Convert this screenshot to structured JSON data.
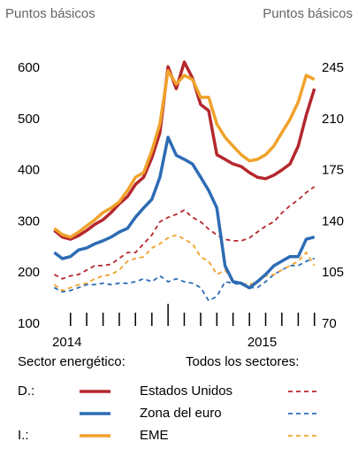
{
  "chart_data": {
    "type": "line",
    "y_axis_label": "Puntos básicos",
    "y2_axis_label": "Puntos básicos",
    "x": [
      2014.417,
      2014.458,
      2014.5,
      2014.542,
      2014.583,
      2014.625,
      2014.667,
      2014.708,
      2014.75,
      2014.792,
      2014.833,
      2014.875,
      2014.917,
      2014.958,
      2015.0,
      2015.042,
      2015.083,
      2015.125,
      2015.167,
      2015.208,
      2015.25,
      2015.292,
      2015.333,
      2015.375,
      2015.417,
      2015.458,
      2015.5,
      2015.542,
      2015.583,
      2015.625,
      2015.667,
      2015.708,
      2015.75
    ],
    "xlim": [
      2014.32,
      2015.86
    ],
    "xticks": [
      2014.5,
      2014.583,
      2014.667,
      2014.75,
      2014.833,
      2014.917,
      2015,
      2015.083,
      2015.167,
      2015.25,
      2015.333,
      2015.417,
      2015.5,
      2015.583,
      2015.667,
      2015.75
    ],
    "major_xticks": [
      2015
    ],
    "xlabels": [
      {
        "value": 2014.5,
        "label": "2014"
      },
      {
        "value": 2015.5,
        "label": "2015"
      }
    ],
    "ylim": [
      100,
      600
    ],
    "yticks": [
      100,
      200,
      300,
      400,
      500,
      600
    ],
    "y2lim": [
      70,
      245
    ],
    "y2ticks": [
      70,
      105,
      140,
      175,
      210,
      245
    ],
    "grid": false,
    "legend_columns": [
      "Sector energético:",
      "Todos los sectores:"
    ],
    "series": [
      {
        "name": "Estados Unidos",
        "note": "D.:",
        "color": "#b5272d",
        "values": [
          283,
          270,
          266,
          273,
          283,
          295,
          304,
          318,
          335,
          349,
          373,
          387,
          425,
          474,
          603,
          560,
          612,
          581,
          529,
          517,
          431,
          422,
          413,
          408,
          396,
          387,
          384,
          391,
          401,
          413,
          448,
          508,
          560
        ],
        "values2": [
          104,
          101,
          103,
          104,
          107,
          110,
          110,
          111,
          115,
          119,
          119,
          125,
          131,
          140,
          143,
          145,
          148,
          143,
          140,
          135,
          131,
          128,
          127,
          127,
          129,
          133,
          137,
          140,
          146,
          151,
          155,
          160,
          164
        ]
      },
      {
        "name": "Zona del euro",
        "color": "#2d6cb5",
        "values": [
          240,
          228,
          232,
          245,
          249,
          257,
          263,
          270,
          280,
          287,
          309,
          327,
          344,
          387,
          465,
          430,
          422,
          413,
          387,
          361,
          327,
          214,
          183,
          180,
          171,
          183,
          197,
          214,
          223,
          232,
          232,
          266,
          270
        ],
        "values2": [
          95,
          92,
          93,
          95,
          97,
          97,
          98,
          97,
          98,
          98,
          99,
          101,
          99,
          103,
          99,
          101,
          99,
          98,
          95,
          86,
          89,
          99,
          98,
          97,
          95,
          95,
          99,
          104,
          107,
          110,
          110,
          113,
          115
        ]
      },
      {
        "name": "EME",
        "note": "I.:",
        "color": "#f0a22a",
        "values": [
          287,
          275,
          270,
          280,
          292,
          304,
          318,
          327,
          339,
          361,
          387,
          396,
          439,
          491,
          595,
          569,
          586,
          578,
          543,
          543,
          491,
          465,
          448,
          431,
          419,
          422,
          431,
          448,
          474,
          500,
          534,
          586,
          578
        ],
        "values2": [
          97,
          93,
          95,
          97,
          98,
          101,
          103,
          104,
          107,
          113,
          115,
          116,
          122,
          125,
          129,
          131,
          128,
          125,
          116,
          113,
          104,
          107,
          99,
          98,
          97,
          99,
          103,
          104,
          107,
          110,
          113,
          119,
          110
        ]
      }
    ]
  }
}
